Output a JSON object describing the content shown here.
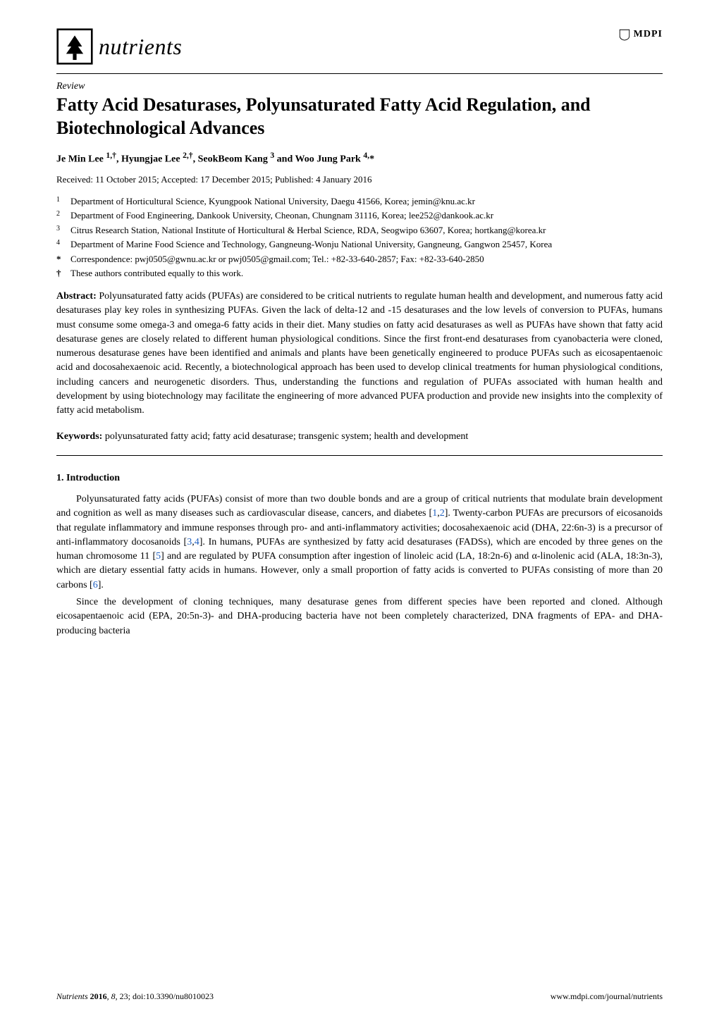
{
  "journal": {
    "name": "nutrients"
  },
  "publisher": {
    "name": "MDPI"
  },
  "article_type": "Review",
  "title": "Fatty Acid Desaturases, Polyunsaturated Fatty Acid Regulation, and Biotechnological Advances",
  "authors_html": "Je Min Lee <sup>1,†</sup>, Hyungjae Lee <sup>2,†</sup>, SeokBeom Kang <sup>3</sup> and Woo Jung Park <sup>4,</sup>*",
  "dates": "Received: 11 October 2015; Accepted: 17 December 2015; Published: 4 January 2016",
  "affiliations": [
    {
      "num": "1",
      "text": "Department of Horticultural Science, Kyungpook National University, Daegu 41566, Korea; jemin@knu.ac.kr"
    },
    {
      "num": "2",
      "text": "Department of Food Engineering, Dankook University, Cheonan, Chungnam 31116, Korea; lee252@dankook.ac.kr"
    },
    {
      "num": "3",
      "text": "Citrus Research Station, National Institute of Horticultural & Herbal Science, RDA, Seogwipo 63607, Korea; hortkang@korea.kr"
    },
    {
      "num": "4",
      "text": "Department of Marine Food Science and Technology, Gangneung-Wonju National University, Gangneung, Gangwon 25457, Korea"
    }
  ],
  "correspondence": "Correspondence: pwj0505@gwnu.ac.kr or pwj0505@gmail.com; Tel.: +82-33-640-2857; Fax: +82-33-640-2850",
  "equal_contrib": "These authors contributed equally to this work.",
  "abstract": {
    "label": "Abstract:",
    "text": "Polyunsaturated fatty acids (PUFAs) are considered to be critical nutrients to regulate human health and development, and numerous fatty acid desaturases play key roles in synthesizing PUFAs. Given the lack of delta-12 and -15 desaturases and the low levels of conversion to PUFAs, humans must consume some omega-3 and omega-6 fatty acids in their diet. Many studies on fatty acid desaturases as well as PUFAs have shown that fatty acid desaturase genes are closely related to different human physiological conditions. Since the first front-end desaturases from cyanobacteria were cloned, numerous desaturase genes have been identified and animals and plants have been genetically engineered to produce PUFAs such as eicosapentaenoic acid and docosahexaenoic acid. Recently, a biotechnological approach has been used to develop clinical treatments for human physiological conditions, including cancers and neurogenetic disorders. Thus, understanding the functions and regulation of PUFAs associated with human health and development by using biotechnology may facilitate the engineering of more advanced PUFA production and provide new insights into the complexity of fatty acid metabolism."
  },
  "keywords": {
    "label": "Keywords:",
    "text": "polyunsaturated fatty acid; fatty acid desaturase; transgenic system; health and development"
  },
  "section1": {
    "header": "1. Introduction",
    "p1_pre": "Polyunsaturated fatty acids (PUFAs) consist of more than two double bonds and are a group of critical nutrients that modulate brain development and cognition as well as many diseases such as cardiovascular disease, cancers, and diabetes [",
    "p1_c1": "1",
    "p1_sep1": ",",
    "p1_c2": "2",
    "p1_mid1": "]. Twenty-carbon PUFAs are precursors of eicosanoids that regulate inflammatory and immune responses through pro- and anti-inflammatory activities; docosahexaenoic acid (DHA, 22:6n-3) is a precursor of anti-inflammatory docosanoids [",
    "p1_c3": "3",
    "p1_sep2": ",",
    "p1_c4": "4",
    "p1_mid2": "]. In humans, PUFAs are synthesized by fatty acid desaturases (FADSs), which are encoded by three genes on the human chromosome 11 [",
    "p1_c5": "5",
    "p1_mid3": "] and are regulated by PUFA consumption after ingestion of linoleic acid (LA, 18:2n-6) and α-linolenic acid (ALA, 18:3n-3), which are dietary essential fatty acids in humans. However, only a small proportion of fatty acids is converted to PUFAs consisting of more than 20 carbons [",
    "p1_c6": "6",
    "p1_end": "].",
    "p2": "Since the development of cloning techniques, many desaturase genes from different species have been reported and cloned. Although eicosapentaenoic acid (EPA, 20:5n-3)- and DHA-producing bacteria have not been completely characterized, DNA fragments of EPA- and DHA-producing bacteria"
  },
  "footer": {
    "left_journal": "Nutrients ",
    "left_year_bold": "2016",
    "left_vol": ", 8",
    "left_rest": ", 23; doi:10.3390/nu8010023",
    "right": "www.mdpi.com/journal/nutrients"
  },
  "colors": {
    "text": "#000000",
    "link": "#2060c0",
    "background": "#ffffff"
  }
}
